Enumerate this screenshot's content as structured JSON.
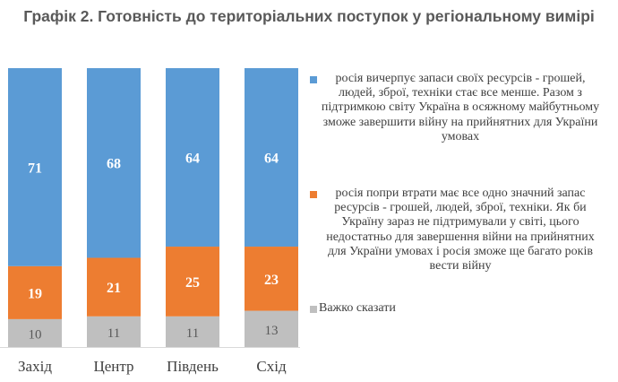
{
  "chart_data": {
    "type": "bar",
    "stacked": true,
    "title": "Графік 2. Готовність до територіальних поступок у регіональному вимірі",
    "categories": [
      "Захід",
      "Центр",
      "Південь",
      "Схід"
    ],
    "series": [
      {
        "name": "Важко сказати",
        "color": "#bfbfbf",
        "values": [
          10,
          11,
          11,
          13
        ]
      },
      {
        "name": "росія попри втрати має все одно значний запас ресурсів - грошей, людей, зброї, техніки. Як би Україну зараз не підтримували у світі, цього недостатньо для завершення війни на прийнятних для України умовах і росія зможе ще багато років вести війну",
        "color": "#ed7d31",
        "values": [
          19,
          21,
          25,
          23
        ]
      },
      {
        "name": "росія вичерпує запаси своїх ресурсів - грошей, людей, зброї, техніки стає все менше. Разом з підтримкою світу Україна в осяжному майбутньому зможе завершити війну на прийнятних для України умовах",
        "color": "#5b9bd5",
        "values": [
          71,
          68,
          64,
          64
        ]
      }
    ],
    "ylim": [
      0,
      100
    ],
    "legend_position": "right"
  }
}
